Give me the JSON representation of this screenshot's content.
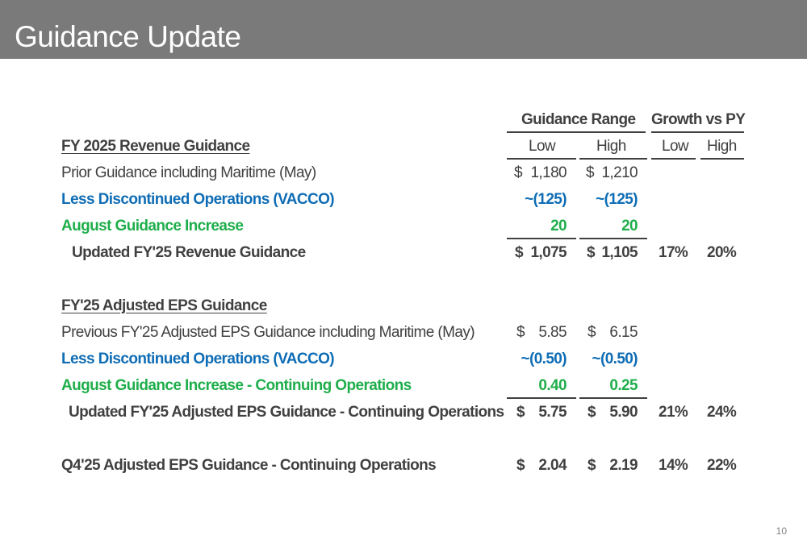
{
  "slide": {
    "title": "Guidance Update",
    "page_number": "10",
    "colors": {
      "title_bar": "#7a7a7a",
      "text": "#404040",
      "blue": "#0f6db5",
      "green": "#1fae4b"
    }
  },
  "table": {
    "group_headers": {
      "guidance_range": "Guidance Range",
      "growth_vs_py": "Growth vs PY"
    },
    "columns": {
      "low": "Low",
      "high": "High",
      "growth_low": "Low",
      "growth_high": "High"
    },
    "revenue": {
      "heading": "FY 2025 Revenue Guidance",
      "prior": {
        "label": "Prior Guidance including Maritime (May)",
        "low_sym": "$",
        "low": "1,180",
        "high_sym": "$",
        "high": "1,210"
      },
      "less": {
        "label": "Less Discontinued Operations (VACCO)",
        "low": "~(125)",
        "high": "~(125)"
      },
      "increase": {
        "label": "August Guidance Increase",
        "low": "20",
        "high": "20"
      },
      "updated": {
        "label": "Updated FY'25 Revenue Guidance",
        "low_sym": "$",
        "low": "1,075",
        "high_sym": "$",
        "high": "1,105",
        "growth_low": "17%",
        "growth_high": "20%"
      }
    },
    "eps": {
      "heading": "FY'25 Adjusted EPS Guidance",
      "prior": {
        "label": "Previous FY'25 Adjusted EPS Guidance including Maritime (May)",
        "low_sym": "$",
        "low": "5.85",
        "high_sym": "$",
        "high": "6.15"
      },
      "less": {
        "label": "Less Discontinued Operations (VACCO)",
        "low": "~(0.50)",
        "high": "~(0.50)"
      },
      "increase": {
        "label": "August Guidance Increase - Continuing Operations",
        "low": "0.40",
        "high": "0.25"
      },
      "updated": {
        "label": "Updated FY'25 Adjusted EPS Guidance - Continuing Operations",
        "low_sym": "$",
        "low": "5.75",
        "high_sym": "$",
        "high": "5.90",
        "growth_low": "21%",
        "growth_high": "24%"
      }
    },
    "q4": {
      "label": "Q4'25 Adjusted EPS Guidance - Continuing Operations",
      "low_sym": "$",
      "low": "2.04",
      "high_sym": "$",
      "high": "2.19",
      "growth_low": "14%",
      "growth_high": "22%"
    }
  }
}
